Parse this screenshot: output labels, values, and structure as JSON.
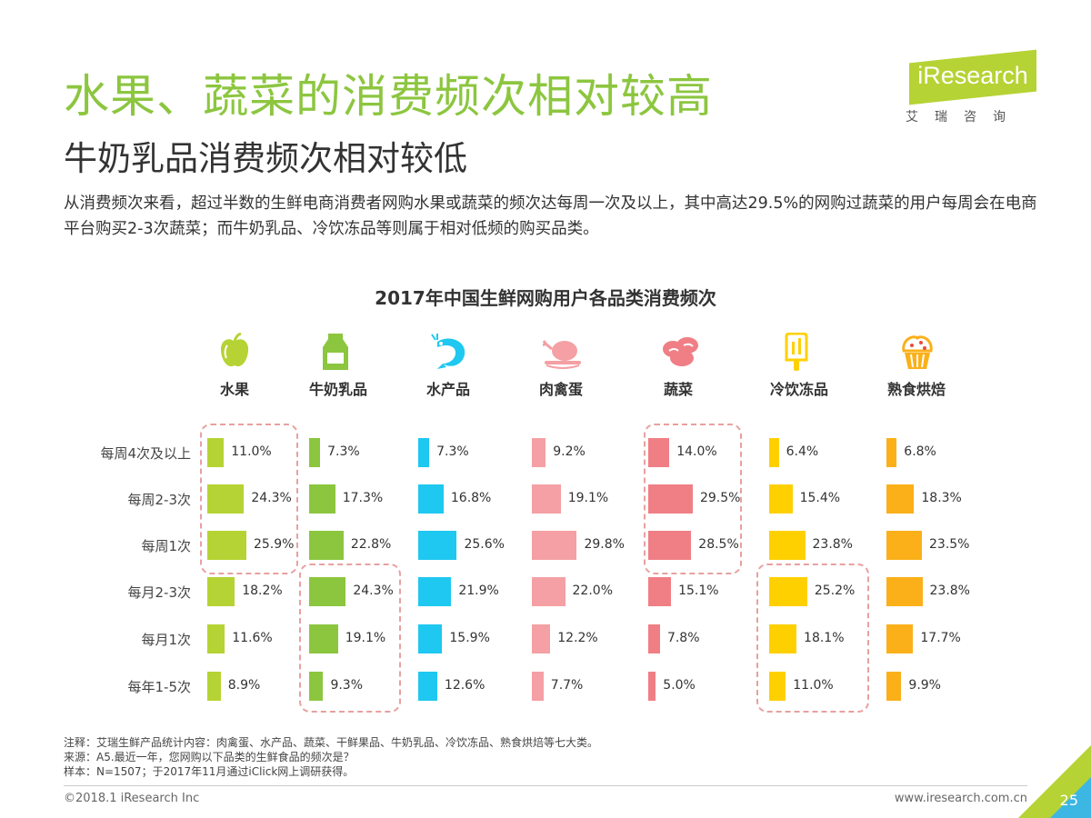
{
  "title": "水果、蔬菜的消费频次相对较高",
  "subtitle": "牛奶乳品消费频次相对较低",
  "description": "从消费频次来看，超过半数的生鲜电商消费者网购水果或蔬菜的频次达每周一次及以上，其中高达29.5%的网购过蔬菜的用户每周会在电商平台购买2-3次蔬菜；而牛奶乳品、冷饮冻品等则属于相对低频的购买品类。",
  "logo": {
    "name": "iResearch",
    "sub": "艾瑞咨询"
  },
  "chart_data": {
    "type": "bar",
    "title": "2017年中国生鲜网购用户各品类消费频次",
    "categories": [
      "每周4次及以上",
      "每周2-3次",
      "每周1次",
      "每月2-3次",
      "每月1次",
      "每年1-5次"
    ],
    "series": [
      {
        "name": "水果",
        "color": "#b5d334",
        "icon": "apple-icon",
        "values": [
          11.0,
          24.3,
          25.9,
          18.2,
          11.6,
          8.9
        ]
      },
      {
        "name": "牛奶乳品",
        "color": "#8cc63f",
        "icon": "milk-carton-icon",
        "values": [
          7.3,
          17.3,
          22.8,
          24.3,
          19.1,
          9.3
        ]
      },
      {
        "name": "水产品",
        "color": "#1ec8f0",
        "icon": "shrimp-icon",
        "values": [
          7.3,
          16.8,
          25.6,
          21.9,
          15.9,
          12.6
        ]
      },
      {
        "name": "肉禽蛋",
        "color": "#f4a0a4",
        "icon": "roast-chicken-icon",
        "values": [
          9.2,
          19.1,
          29.8,
          22.0,
          12.2,
          7.7
        ]
      },
      {
        "name": "蔬菜",
        "color": "#f07f85",
        "icon": "vegetable-icon",
        "values": [
          14.0,
          29.5,
          28.5,
          15.1,
          7.8,
          5.0
        ]
      },
      {
        "name": "冷饮冻品",
        "color": "#ffd000",
        "icon": "popsicle-icon",
        "values": [
          6.4,
          15.4,
          23.8,
          25.2,
          18.1,
          11.0
        ]
      },
      {
        "name": "熟食烘焙",
        "color": "#fbb01a",
        "icon": "cupcake-icon",
        "values": [
          6.8,
          18.3,
          23.5,
          23.8,
          17.7,
          9.9
        ]
      }
    ]
  },
  "footnotes": [
    "注释：艾瑞生鲜产品统计内容：肉禽蛋、水产品、蔬菜、干鲜果品、牛奶乳品、冷饮冻品、熟食烘焙等七大类。",
    "来源：A5.最近一年，您网购以下品类的生鲜食品的频次是？",
    "样本：N=1507；于2017年11月通过iClick网上调研获得。"
  ],
  "footer": {
    "copyright": "©2018.1 iResearch Inc",
    "url": "www.iresearch.com.cn",
    "page": "25"
  }
}
